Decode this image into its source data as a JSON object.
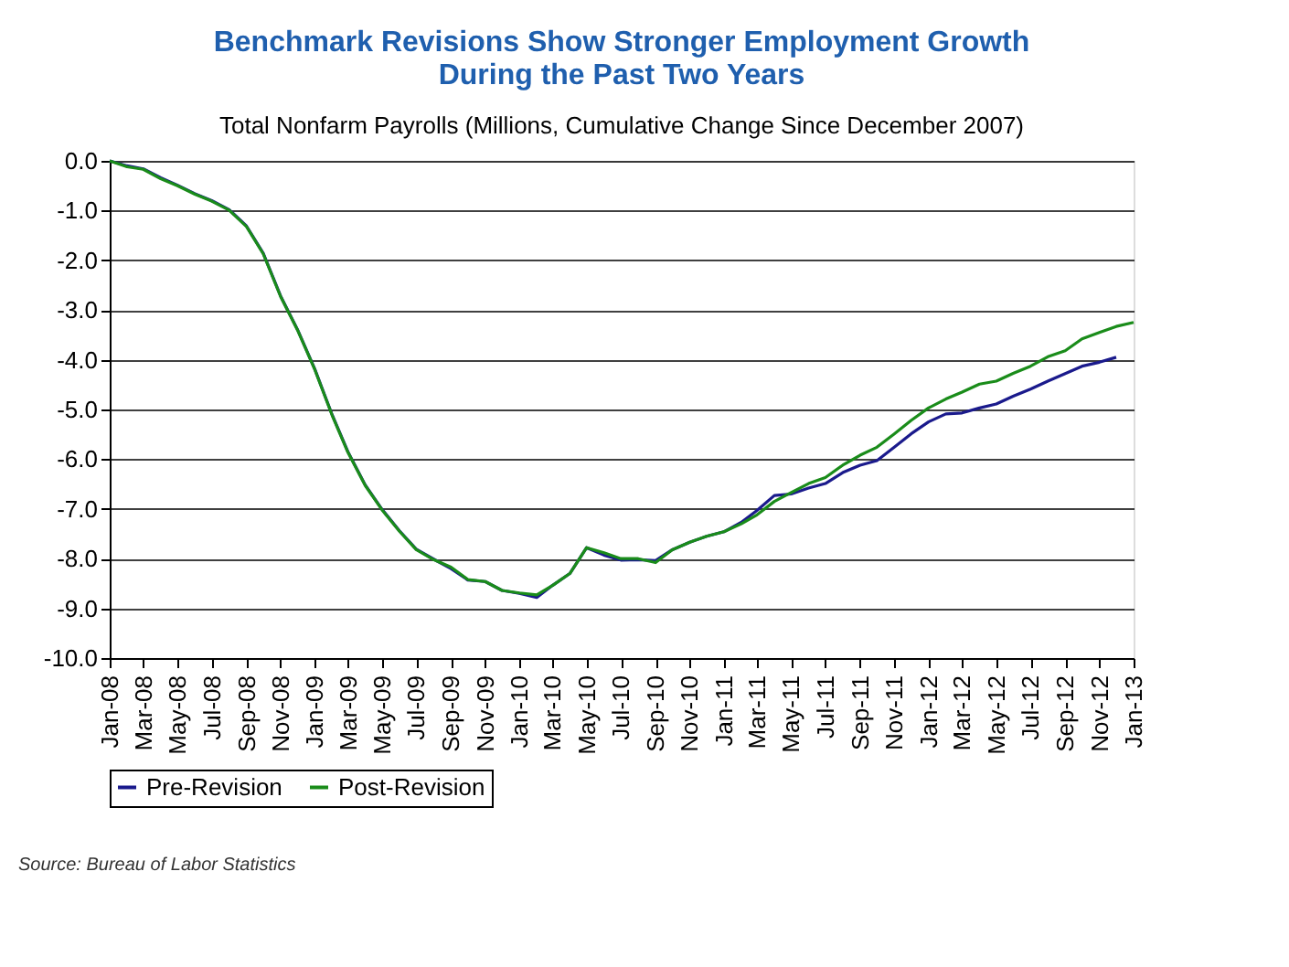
{
  "chart_data": {
    "type": "line",
    "title": "Benchmark Revisions Show Stronger Employment Growth\nDuring the Past Two Years",
    "subtitle": "Total Nonfarm Payrolls (Millions, Cumulative Change Since December 2007)",
    "x": [
      "2008-01",
      "2008-02",
      "2008-03",
      "2008-04",
      "2008-05",
      "2008-06",
      "2008-07",
      "2008-08",
      "2008-09",
      "2008-10",
      "2008-11",
      "2008-12",
      "2009-01",
      "2009-02",
      "2009-03",
      "2009-04",
      "2009-05",
      "2009-06",
      "2009-07",
      "2009-08",
      "2009-09",
      "2009-10",
      "2009-11",
      "2009-12",
      "2010-01",
      "2010-02",
      "2010-03",
      "2010-04",
      "2010-05",
      "2010-06",
      "2010-07",
      "2010-08",
      "2010-09",
      "2010-10",
      "2010-11",
      "2010-12",
      "2011-01",
      "2011-02",
      "2011-03",
      "2011-04",
      "2011-05",
      "2011-06",
      "2011-07",
      "2011-08",
      "2011-09",
      "2011-10",
      "2011-11",
      "2011-12",
      "2012-01",
      "2012-02",
      "2012-03",
      "2012-04",
      "2012-05",
      "2012-06",
      "2012-07",
      "2012-08",
      "2012-09",
      "2012-10",
      "2012-11",
      "2012-12",
      "2013-01"
    ],
    "series": [
      {
        "name": "Pre-Revision",
        "color": "#1a1a8c",
        "values": [
          0.0,
          -0.1,
          -0.16,
          -0.34,
          -0.49,
          -0.66,
          -0.8,
          -0.98,
          -1.31,
          -1.86,
          -2.72,
          -3.39,
          -4.19,
          -5.11,
          -5.85,
          -6.52,
          -7.01,
          -7.44,
          -7.81,
          -8.01,
          -8.2,
          -8.43,
          -8.46,
          -8.64,
          -8.7,
          -8.78,
          -8.54,
          -8.3,
          -7.78,
          -7.93,
          -8.03,
          -8.02,
          -8.04,
          -7.82,
          -7.67,
          -7.55,
          -7.46,
          -7.27,
          -7.03,
          -6.73,
          -6.7,
          -6.58,
          -6.49,
          -6.27,
          -6.12,
          -6.03,
          -5.76,
          -5.49,
          -5.25,
          -5.09,
          -5.07,
          -4.97,
          -4.89,
          -4.73,
          -4.59,
          -4.43,
          -4.28,
          -4.13,
          -4.05,
          -3.95,
          null
        ]
      },
      {
        "name": "Post-Revision",
        "color": "#1a8c1a",
        "values": [
          0.0,
          -0.12,
          -0.17,
          -0.36,
          -0.5,
          -0.67,
          -0.81,
          -0.99,
          -1.32,
          -1.87,
          -2.73,
          -3.4,
          -4.2,
          -5.12,
          -5.86,
          -6.53,
          -7.02,
          -7.45,
          -7.82,
          -8.02,
          -8.17,
          -8.42,
          -8.46,
          -8.64,
          -8.69,
          -8.73,
          -8.54,
          -8.3,
          -7.78,
          -7.88,
          -8.0,
          -8.0,
          -8.08,
          -7.82,
          -7.67,
          -7.55,
          -7.46,
          -7.3,
          -7.12,
          -6.85,
          -6.67,
          -6.49,
          -6.37,
          -6.12,
          -5.92,
          -5.76,
          -5.49,
          -5.22,
          -4.97,
          -4.79,
          -4.65,
          -4.49,
          -4.43,
          -4.27,
          -4.13,
          -3.94,
          -3.82,
          -3.58,
          -3.45,
          -3.33,
          -3.25
        ]
      }
    ],
    "xlim": [
      "2008-01",
      "2013-01"
    ],
    "xticks": [
      {
        "value": "2008-01",
        "label": "Jan-08"
      },
      {
        "value": "2008-03",
        "label": "Mar-08"
      },
      {
        "value": "2008-05",
        "label": "May-08"
      },
      {
        "value": "2008-07",
        "label": "Jul-08"
      },
      {
        "value": "2008-09",
        "label": "Sep-08"
      },
      {
        "value": "2008-11",
        "label": "Nov-08"
      },
      {
        "value": "2009-01",
        "label": "Jan-09"
      },
      {
        "value": "2009-03",
        "label": "Mar-09"
      },
      {
        "value": "2009-05",
        "label": "May-09"
      },
      {
        "value": "2009-07",
        "label": "Jul-09"
      },
      {
        "value": "2009-09",
        "label": "Sep-09"
      },
      {
        "value": "2009-11",
        "label": "Nov-09"
      },
      {
        "value": "2010-01",
        "label": "Jan-10"
      },
      {
        "value": "2010-03",
        "label": "Mar-10"
      },
      {
        "value": "2010-05",
        "label": "May-10"
      },
      {
        "value": "2010-07",
        "label": "Jul-10"
      },
      {
        "value": "2010-09",
        "label": "Sep-10"
      },
      {
        "value": "2010-11",
        "label": "Nov-10"
      },
      {
        "value": "2011-01",
        "label": "Jan-11"
      },
      {
        "value": "2011-03",
        "label": "Mar-11"
      },
      {
        "value": "2011-05",
        "label": "May-11"
      },
      {
        "value": "2011-07",
        "label": "Jul-11"
      },
      {
        "value": "2011-09",
        "label": "Sep-11"
      },
      {
        "value": "2011-11",
        "label": "Nov-11"
      },
      {
        "value": "2012-01",
        "label": "Jan-12"
      },
      {
        "value": "2012-03",
        "label": "Mar-12"
      },
      {
        "value": "2012-05",
        "label": "May-12"
      },
      {
        "value": "2012-07",
        "label": "Jul-12"
      },
      {
        "value": "2012-09",
        "label": "Sep-12"
      },
      {
        "value": "2012-11",
        "label": "Nov-12"
      },
      {
        "value": "2013-01",
        "label": "Jan-13"
      }
    ],
    "ylim": [
      -10,
      0
    ],
    "yticks": [
      {
        "value": 0,
        "label": "0.0"
      },
      {
        "value": -1,
        "label": "-1.0"
      },
      {
        "value": -2,
        "label": "-2.0"
      },
      {
        "value": -3,
        "label": "-3.0"
      },
      {
        "value": -4,
        "label": "-4.0"
      },
      {
        "value": -5,
        "label": "-5.0"
      },
      {
        "value": -6,
        "label": "-6.0"
      },
      {
        "value": -7,
        "label": "-7.0"
      },
      {
        "value": -8,
        "label": "-8.0"
      },
      {
        "value": -9,
        "label": "-9.0"
      },
      {
        "value": -10,
        "label": "-10.0"
      }
    ],
    "grid": "y",
    "legend": "bottom",
    "marker": "none",
    "line_style": "solid",
    "annotations": [
      "Source: Bureau of Labor Statistics"
    ]
  }
}
